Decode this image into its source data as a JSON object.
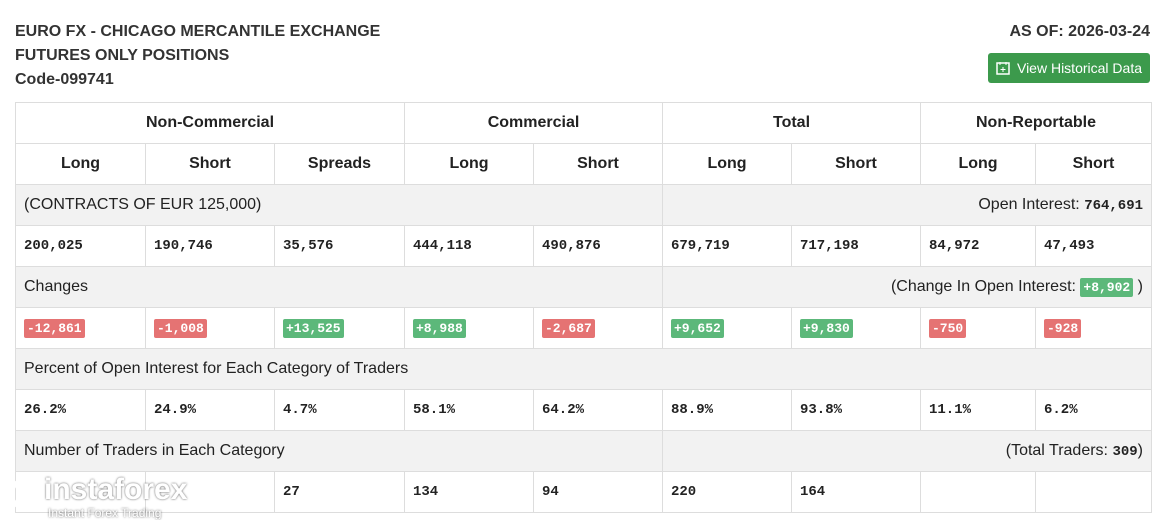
{
  "header": {
    "title_lines": [
      "EURO FX - CHICAGO MERCANTILE EXCHANGE",
      "FUTURES ONLY POSITIONS",
      "Code-099741"
    ],
    "as_of": "AS OF: 2026-03-24",
    "button": "View Historical Data"
  },
  "table": {
    "groups": [
      "Non-Commercial",
      "Commercial",
      "Total",
      "Non-Reportable"
    ],
    "columns": [
      "Long",
      "Short",
      "Spreads",
      "Long",
      "Short",
      "Long",
      "Short",
      "Long",
      "Short"
    ],
    "contracts_label": "(CONTRACTS OF EUR 125,000)",
    "open_interest_label": "Open Interest:",
    "open_interest": "764,691",
    "positions": [
      "200,025",
      "190,746",
      "35,576",
      "444,118",
      "490,876",
      "679,719",
      "717,198",
      "84,972",
      "47,493"
    ],
    "changes_label": "Changes",
    "change_oi_label": "(Change In Open Interest:",
    "change_oi": "+8,902",
    "change_oi_close": ")",
    "changes": [
      "-12,861",
      "-1,008",
      "+13,525",
      "+8,988",
      "-2,687",
      "+9,652",
      "+9,830",
      "-750",
      "-928"
    ],
    "percent_label": "Percent of Open Interest for Each Category of Traders",
    "percent": [
      "26.2%",
      "24.9%",
      "4.7%",
      "58.1%",
      "64.2%",
      "88.9%",
      "93.8%",
      "11.1%",
      "6.2%"
    ],
    "traders_label": "Number of Traders in Each Category",
    "total_traders_label": "(Total Traders:",
    "total_traders": "309",
    "total_traders_close": ")",
    "traders": [
      null,
      null,
      "27",
      "134",
      "94",
      "220",
      "164",
      null,
      null
    ]
  },
  "watermark": {
    "brand": "instaforex",
    "tagline": "Instant Forex Trading"
  }
}
